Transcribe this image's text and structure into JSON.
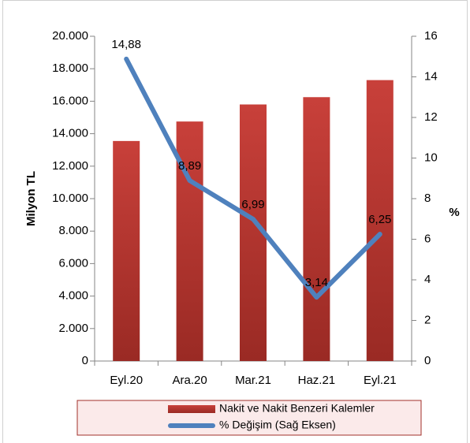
{
  "chart_data": {
    "type": "bar",
    "categories": [
      "Eyl.20",
      "Ara.20",
      "Mar.21",
      "Haz.21",
      "Eyl.21"
    ],
    "series": [
      {
        "name": "Nakit ve Nakit Benzeri Kalemler",
        "type": "bar",
        "color": "#c8403a",
        "values": [
          13550,
          14750,
          15800,
          16250,
          17300
        ]
      },
      {
        "name": "% Değişim (Sağ Eksen)",
        "type": "line",
        "axis": "y2",
        "color": "#4f81bd",
        "values": [
          14.88,
          8.89,
          6.99,
          3.14,
          6.25
        ],
        "value_labels": [
          "14,88",
          "8,89",
          "6,99",
          "3,14",
          "6,25"
        ]
      }
    ],
    "y_label": "Milyon TL",
    "y2_label": "%",
    "ylim": [
      0,
      20000
    ],
    "yticks": [
      0,
      {
        "value": 2000,
        "label": "2.000"
      },
      {
        "value": 4000,
        "label": "4.000"
      },
      {
        "value": 6000,
        "label": "6.000"
      },
      {
        "value": 8000,
        "label": "8.000"
      },
      {
        "value": 10000,
        "label": "10.000"
      },
      {
        "value": 12000,
        "label": "12.000"
      },
      {
        "value": 14000,
        "label": "14.000"
      },
      {
        "value": 16000,
        "label": "16.000"
      },
      {
        "value": 18000,
        "label": "18.000"
      },
      {
        "value": 20000,
        "label": "20.000"
      }
    ],
    "y2lim": [
      0,
      16
    ],
    "y2ticks": [
      0,
      2,
      4,
      6,
      8,
      10,
      12,
      14,
      16
    ],
    "legend": "bottom",
    "grid": false
  }
}
